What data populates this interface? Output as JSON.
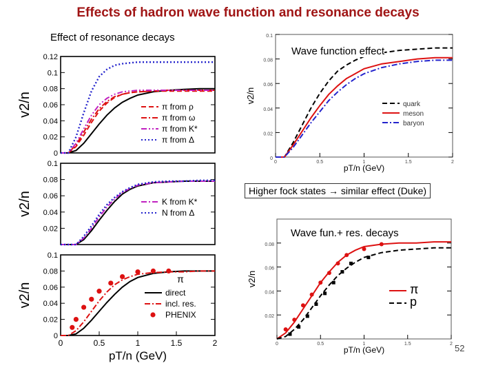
{
  "slide": {
    "title": "Effects of hadron wave function and resonance decays",
    "left_caption": "Effect of resonance decays",
    "right_top_caption": "Wave function effect",
    "middle_caption": "Higher fock states → similar effect (Duke)",
    "right_bottom_caption": "Wave fun.+ res. decays",
    "page_number": "52"
  },
  "colors": {
    "title": "#a01515",
    "red": "#dd1111",
    "magenta": "#c020c0",
    "blue": "#2222cc",
    "black": "#000000"
  },
  "chart_data": [
    {
      "type": "line",
      "title": "Effect of resonance decays (top)",
      "ylabel": "v2/n",
      "xlim": [
        0,
        2
      ],
      "ylim": [
        0,
        0.12
      ],
      "yticks": [
        "0",
        "0.02",
        "0.04",
        "0.06",
        "0.08",
        "0.1",
        "0.12"
      ],
      "x": [
        0,
        0.1,
        0.2,
        0.3,
        0.4,
        0.5,
        0.6,
        0.7,
        0.8,
        0.9,
        1.0,
        1.2,
        1.4,
        1.6,
        1.8,
        2.0
      ],
      "series": [
        {
          "name": "direct",
          "style": "solid",
          "color": "#000000",
          "values": [
            0,
            0,
            0.003,
            0.012,
            0.024,
            0.036,
            0.047,
            0.056,
            0.063,
            0.068,
            0.072,
            0.076,
            0.078,
            0.079,
            0.08,
            0.08
          ]
        },
        {
          "name": "π from ρ",
          "style": "dashed",
          "color": "#dd1111",
          "values": [
            0,
            0,
            0.008,
            0.022,
            0.038,
            0.052,
            0.062,
            0.069,
            0.073,
            0.075,
            0.076,
            0.077,
            0.077,
            0.077,
            0.077,
            0.077
          ]
        },
        {
          "name": "π from ω",
          "style": "dashdot",
          "color": "#dd1111",
          "values": [
            0,
            0,
            0.01,
            0.026,
            0.042,
            0.055,
            0.064,
            0.07,
            0.073,
            0.075,
            0.076,
            0.077,
            0.078,
            0.078,
            0.078,
            0.078
          ]
        },
        {
          "name": "π from K*",
          "style": "dashdotdot",
          "color": "#c020c0",
          "values": [
            0,
            0,
            0.012,
            0.03,
            0.047,
            0.06,
            0.068,
            0.073,
            0.076,
            0.077,
            0.078,
            0.078,
            0.078,
            0.078,
            0.078,
            0.078
          ]
        },
        {
          "name": "π from Δ",
          "style": "dotted",
          "color": "#2222cc",
          "values": [
            0,
            0,
            0.02,
            0.05,
            0.077,
            0.095,
            0.104,
            0.109,
            0.111,
            0.112,
            0.113,
            0.113,
            0.113,
            0.113,
            0.113,
            0.113
          ]
        }
      ]
    },
    {
      "type": "line",
      "title": "Effect of resonance decays (middle)",
      "ylabel": "v2/n",
      "xlim": [
        0,
        2
      ],
      "ylim": [
        0,
        0.1
      ],
      "yticks": [
        "0.02",
        "0.04",
        "0.06",
        "0.08",
        "0.1"
      ],
      "x": [
        0,
        0.1,
        0.2,
        0.3,
        0.4,
        0.5,
        0.6,
        0.7,
        0.8,
        0.9,
        1.0,
        1.2,
        1.4,
        1.6,
        1.8,
        2.0
      ],
      "series": [
        {
          "name": "direct",
          "style": "solid",
          "color": "#000000",
          "values": [
            0,
            0,
            0,
            0.006,
            0.017,
            0.03,
            0.042,
            0.053,
            0.062,
            0.068,
            0.072,
            0.076,
            0.077,
            0.078,
            0.078,
            0.078
          ]
        },
        {
          "name": "K from K*",
          "style": "dashdot",
          "color": "#c020c0",
          "values": [
            0,
            0,
            0,
            0.008,
            0.02,
            0.034,
            0.046,
            0.056,
            0.064,
            0.069,
            0.073,
            0.076,
            0.077,
            0.078,
            0.078,
            0.078
          ]
        },
        {
          "name": "N from Δ",
          "style": "dotted",
          "color": "#2222cc",
          "values": [
            0,
            0,
            0,
            0.01,
            0.023,
            0.037,
            0.049,
            0.058,
            0.065,
            0.07,
            0.074,
            0.077,
            0.078,
            0.078,
            0.079,
            0.079
          ]
        }
      ]
    },
    {
      "type": "line",
      "title": "Effect of resonance decays (bottom)",
      "legend_title": "π",
      "ylabel": "v2/n",
      "xlabel": "pT/n (GeV)",
      "xlim": [
        0,
        2
      ],
      "ylim": [
        0,
        0.1
      ],
      "xticks": [
        "0",
        "0.5",
        "1",
        "1.5",
        "2"
      ],
      "yticks": [
        "0",
        "0.02",
        "0.04",
        "0.06",
        "0.08",
        "0.1"
      ],
      "x": [
        0,
        0.1,
        0.2,
        0.3,
        0.4,
        0.5,
        0.6,
        0.7,
        0.8,
        0.9,
        1.0,
        1.2,
        1.4,
        1.6,
        1.8,
        2.0
      ],
      "series": [
        {
          "name": "direct",
          "style": "solid",
          "color": "#000000",
          "values": [
            0,
            0,
            0.002,
            0.009,
            0.019,
            0.03,
            0.041,
            0.051,
            0.06,
            0.067,
            0.072,
            0.077,
            0.079,
            0.08,
            0.08,
            0.08
          ]
        },
        {
          "name": "incl. res.",
          "style": "dashdot",
          "color": "#dd1111",
          "values": [
            0,
            0,
            0.006,
            0.017,
            0.03,
            0.043,
            0.054,
            0.063,
            0.069,
            0.073,
            0.076,
            0.078,
            0.079,
            0.079,
            0.08,
            0.08
          ]
        }
      ],
      "points": {
        "name": "PHENIX",
        "color": "#dd1111",
        "x": [
          0.15,
          0.2,
          0.3,
          0.4,
          0.5,
          0.65,
          0.8,
          1.0,
          1.2,
          1.4
        ],
        "y": [
          0.01,
          0.02,
          0.035,
          0.045,
          0.055,
          0.065,
          0.073,
          0.079,
          0.08,
          0.08
        ]
      }
    },
    {
      "type": "line",
      "title": "Wave function effect",
      "ylabel": "v2/n",
      "xlabel": "pT/n (GeV)",
      "xlim": [
        0,
        2
      ],
      "ylim": [
        0,
        0.1
      ],
      "xticks": [
        "0",
        "0.5",
        "1",
        "1.5",
        "2"
      ],
      "yticks": [
        "0",
        "0.02",
        "0.04",
        "0.06",
        "0.08",
        "0.1"
      ],
      "x": [
        0,
        0.1,
        0.2,
        0.3,
        0.4,
        0.5,
        0.6,
        0.7,
        0.8,
        0.9,
        1.0,
        1.2,
        1.4,
        1.6,
        1.8,
        2.0
      ],
      "series": [
        {
          "name": "quark",
          "style": "dashed",
          "color": "#000000",
          "values": [
            0,
            0,
            0.012,
            0.026,
            0.04,
            0.052,
            0.062,
            0.07,
            0.075,
            0.079,
            0.082,
            0.085,
            0.087,
            0.088,
            0.089,
            0.089
          ]
        },
        {
          "name": "meson",
          "style": "solid",
          "color": "#dd1111",
          "values": [
            0,
            0,
            0.01,
            0.021,
            0.032,
            0.042,
            0.051,
            0.058,
            0.064,
            0.068,
            0.072,
            0.076,
            0.078,
            0.08,
            0.081,
            0.081
          ]
        },
        {
          "name": "baryon",
          "style": "dashdot",
          "color": "#2222cc",
          "values": [
            0,
            0,
            0.008,
            0.018,
            0.028,
            0.037,
            0.046,
            0.053,
            0.059,
            0.064,
            0.068,
            0.073,
            0.076,
            0.078,
            0.079,
            0.079
          ]
        }
      ]
    },
    {
      "type": "line",
      "title": "Wave fun.+ res. decays",
      "ylabel": "v2/n",
      "xlabel": "pT/n (GeV)",
      "xlim": [
        0,
        2
      ],
      "ylim": [
        0,
        0.1
      ],
      "xticks": [
        "0",
        "0.5",
        "1",
        "1.5",
        "2"
      ],
      "yticks": [
        "0.02",
        "0.04",
        "0.06",
        "0.08"
      ],
      "x": [
        0,
        0.1,
        0.2,
        0.3,
        0.4,
        0.5,
        0.6,
        0.7,
        0.8,
        0.9,
        1.0,
        1.2,
        1.4,
        1.6,
        1.8,
        2.0
      ],
      "series": [
        {
          "name": "π",
          "style": "solid",
          "color": "#dd1111",
          "values": [
            0,
            0.005,
            0.014,
            0.025,
            0.036,
            0.047,
            0.056,
            0.064,
            0.07,
            0.074,
            0.077,
            0.079,
            0.08,
            0.08,
            0.081,
            0.081
          ]
        },
        {
          "name": "p",
          "style": "dashed",
          "color": "#000000",
          "values": [
            0,
            0.002,
            0.008,
            0.016,
            0.026,
            0.036,
            0.045,
            0.053,
            0.059,
            0.064,
            0.068,
            0.072,
            0.074,
            0.075,
            0.076,
            0.076
          ]
        }
      ],
      "points_series": [
        {
          "name": "π data",
          "color": "#dd1111",
          "x": [
            0.1,
            0.2,
            0.3,
            0.4,
            0.5,
            0.6,
            0.7,
            0.8,
            1.0,
            1.2
          ],
          "y": [
            0.008,
            0.016,
            0.028,
            0.037,
            0.047,
            0.055,
            0.063,
            0.07,
            0.075,
            0.079
          ]
        },
        {
          "name": "p data",
          "color": "#000000",
          "x": [
            0.15,
            0.25,
            0.35,
            0.45,
            0.55,
            0.65,
            0.75,
            0.85,
            1.05
          ],
          "y": [
            0.004,
            0.01,
            0.019,
            0.029,
            0.038,
            0.047,
            0.056,
            0.063,
            0.068
          ]
        }
      ]
    }
  ]
}
